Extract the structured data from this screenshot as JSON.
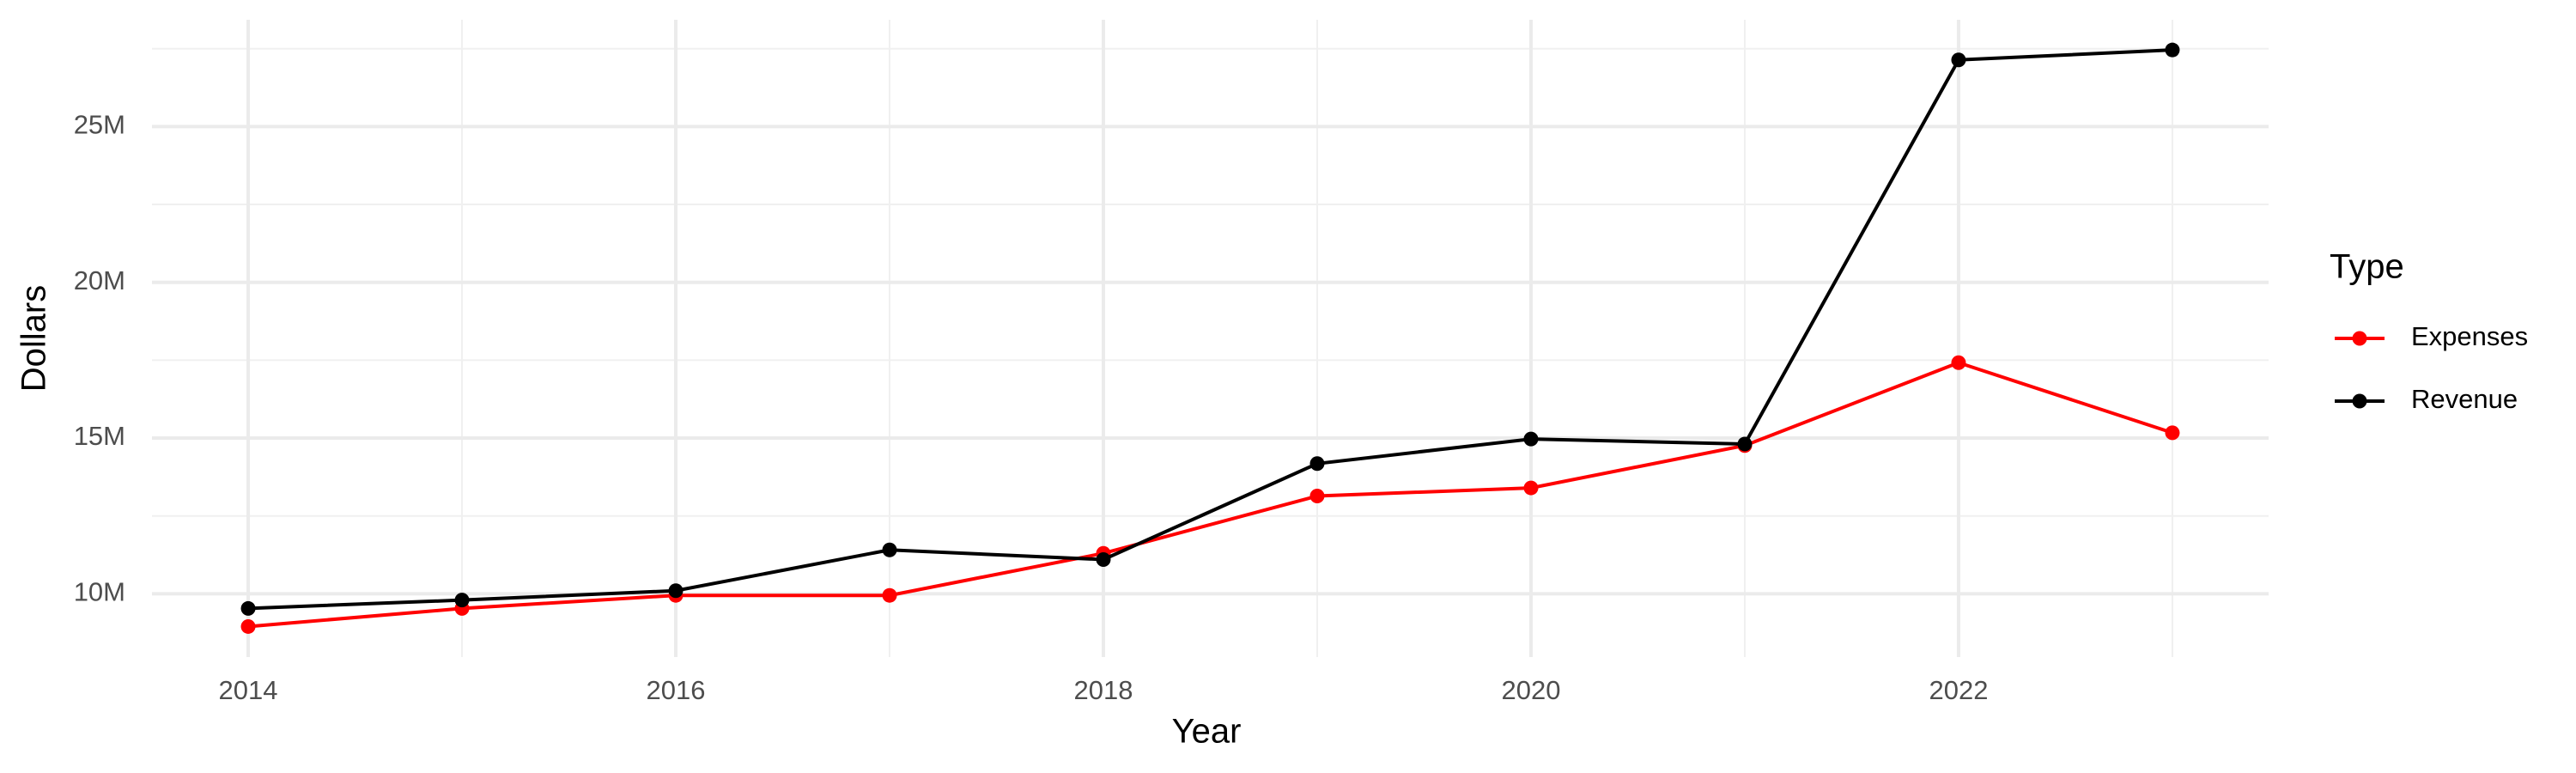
{
  "chart_data": {
    "type": "line",
    "x_label": "Year",
    "y_label": "Dollars",
    "x": [
      2014,
      2015,
      2016,
      2017,
      2018,
      2019,
      2020,
      2021,
      2022,
      2023
    ],
    "series": [
      {
        "name": "Expenses",
        "color": "#ff0000",
        "values": [
          8950000,
          9530000,
          9950000,
          9950000,
          11300000,
          13140000,
          13400000,
          14760000,
          17420000,
          15170000
        ]
      },
      {
        "name": "Revenue",
        "color": "#000000",
        "values": [
          9530000,
          9800000,
          10100000,
          11410000,
          11100000,
          14180000,
          14970000,
          14810000,
          27140000,
          27460000
        ]
      }
    ],
    "xlim": [
      2013.55,
      2023.45
    ],
    "xticks": [
      2014,
      2016,
      2018,
      2020,
      2022
    ],
    "ylim": [
      7970000,
      28430000
    ],
    "yticks": [
      {
        "value": 10000000,
        "label": "10M"
      },
      {
        "value": 15000000,
        "label": "15M"
      },
      {
        "value": 20000000,
        "label": "20M"
      },
      {
        "value": 25000000,
        "label": "25M"
      }
    ],
    "grid": true,
    "legend_title": "Type",
    "legend_position": "right"
  }
}
